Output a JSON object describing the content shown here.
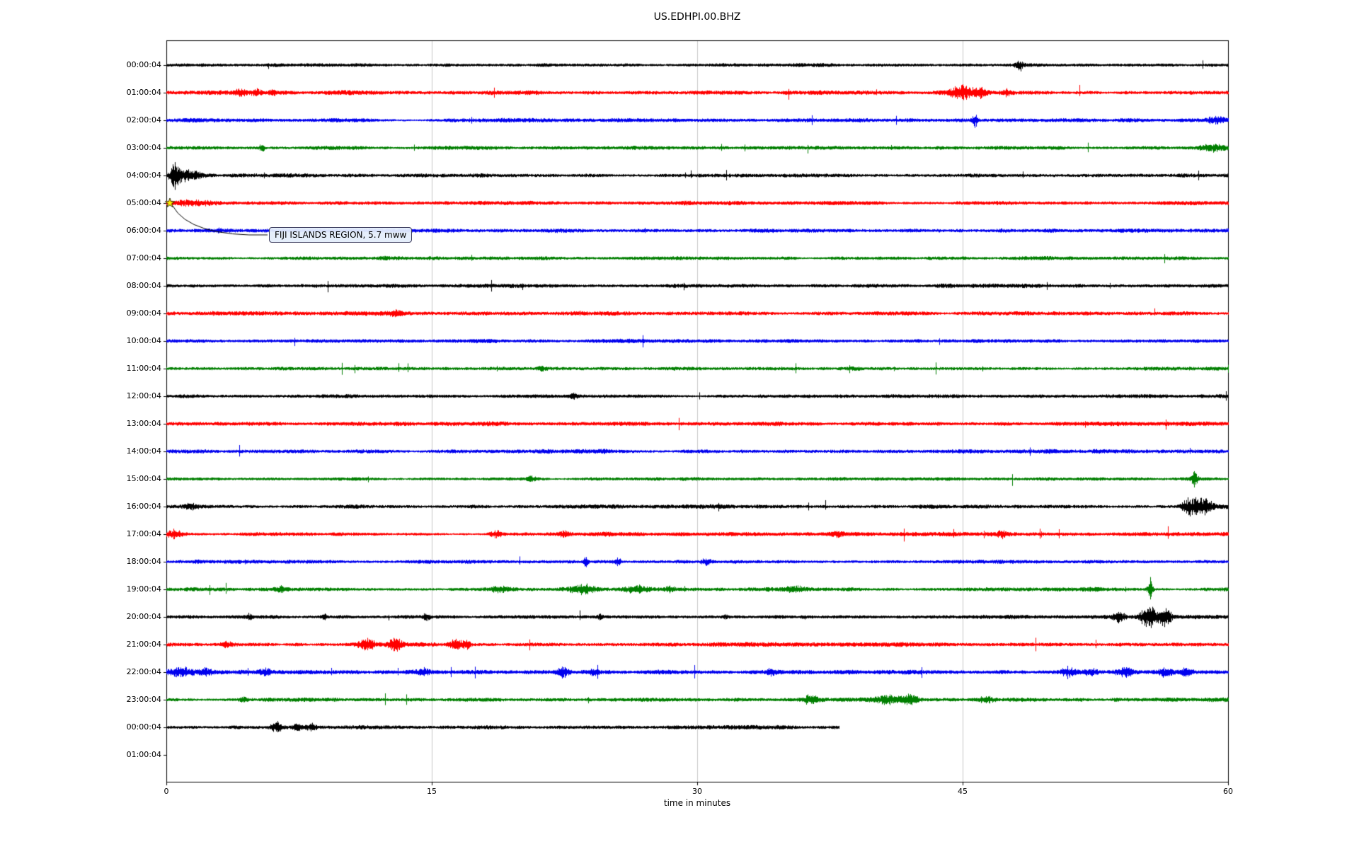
{
  "chart_data": {
    "type": "line",
    "subtype": "seismic helicorder dayplot, one trace per hour",
    "title": "US.EDHPI.00.BHZ",
    "xlabel": "time in minutes",
    "xlim": [
      0,
      60
    ],
    "xticks": [
      0,
      15,
      30,
      45,
      60
    ],
    "grid": "vertical gridlines at 15, 30 and 45 minutes",
    "trace_color_cycle": [
      "black",
      "red",
      "blue",
      "green"
    ],
    "palette": {
      "black": "#000000",
      "red": "#ff0000",
      "blue": "#0000ee",
      "green": "#007f00",
      "grid": "#bbbbbb",
      "frame": "#000000",
      "star": "#ffee00"
    },
    "annotation": {
      "text": "FIJI ISLANDS REGION, 5.7 mww",
      "row": "05:00:04",
      "minute": 0.2,
      "marker": "star",
      "marker_color": "#ffee00"
    },
    "rows": [
      {
        "label": "00:00:04",
        "color": "black",
        "end": 60,
        "base": 1.8,
        "bursts": [
          [
            48.2,
            5,
            0.15
          ]
        ]
      },
      {
        "label": "01:00:04",
        "color": "red",
        "end": 60,
        "base": 2.1,
        "bursts": [
          [
            4.2,
            3,
            0.25
          ],
          [
            5.1,
            4,
            0.2
          ],
          [
            6.0,
            3.5,
            0.15
          ],
          [
            44.9,
            7,
            0.45
          ],
          [
            45.9,
            5,
            0.3
          ],
          [
            47.5,
            3,
            0.2
          ]
        ]
      },
      {
        "label": "02:00:04",
        "color": "blue",
        "end": 60,
        "base": 2.0,
        "bursts": [
          [
            45.7,
            7,
            0.1
          ],
          [
            59.4,
            3.5,
            0.5
          ]
        ]
      },
      {
        "label": "03:00:04",
        "color": "green",
        "end": 60,
        "base": 1.8,
        "bursts": [
          [
            5.4,
            4.5,
            0.1
          ],
          [
            59.2,
            3.5,
            0.45
          ]
        ]
      },
      {
        "label": "04:00:04",
        "color": "black",
        "end": 60,
        "base": 1.8,
        "bursts": [
          [
            0.45,
            13,
            0.18
          ],
          [
            0.95,
            6,
            0.25
          ],
          [
            1.6,
            3,
            0.4
          ]
        ]
      },
      {
        "label": "05:00:04",
        "color": "red",
        "end": 60,
        "base": 2.1,
        "bursts": [
          [
            1.5,
            2.5,
            1.0
          ]
        ]
      },
      {
        "label": "06:00:04",
        "color": "blue",
        "end": 60,
        "base": 2.0,
        "bursts": [
          [
            3.0,
            2.0,
            0.6
          ]
        ]
      },
      {
        "label": "07:00:04",
        "color": "green",
        "end": 60,
        "base": 1.8,
        "bursts": []
      },
      {
        "label": "08:00:04",
        "color": "black",
        "end": 60,
        "base": 2.1,
        "bursts": []
      },
      {
        "label": "09:00:04",
        "color": "red",
        "end": 60,
        "base": 2.1,
        "bursts": [
          [
            13.0,
            2.5,
            0.25
          ]
        ]
      },
      {
        "label": "10:00:04",
        "color": "blue",
        "end": 60,
        "base": 2.0,
        "bursts": []
      },
      {
        "label": "11:00:04",
        "color": "green",
        "end": 60,
        "base": 1.8,
        "bursts": [
          [
            21.2,
            2.5,
            0.2
          ]
        ]
      },
      {
        "label": "12:00:04",
        "color": "black",
        "end": 60,
        "base": 1.9,
        "bursts": [
          [
            23.0,
            2.5,
            0.15
          ]
        ]
      },
      {
        "label": "13:00:04",
        "color": "red",
        "end": 60,
        "base": 2.1,
        "bursts": []
      },
      {
        "label": "14:00:04",
        "color": "blue",
        "end": 60,
        "base": 2.0,
        "bursts": []
      },
      {
        "label": "15:00:04",
        "color": "green",
        "end": 60,
        "base": 1.8,
        "bursts": [
          [
            20.6,
            2.5,
            0.2
          ],
          [
            58.1,
            7,
            0.12
          ]
        ]
      },
      {
        "label": "16:00:04",
        "color": "black",
        "end": 60,
        "base": 2.0,
        "bursts": [
          [
            1.4,
            3,
            0.3
          ],
          [
            57.9,
            9,
            0.35
          ],
          [
            58.7,
            8,
            0.3
          ]
        ]
      },
      {
        "label": "17:00:04",
        "color": "red",
        "end": 60,
        "base": 2.2,
        "bursts": [
          [
            0.4,
            4,
            0.35
          ],
          [
            18.6,
            3.5,
            0.25
          ],
          [
            22.5,
            3,
            0.2
          ],
          [
            37.9,
            2.5,
            0.2
          ],
          [
            47.2,
            3.5,
            0.15
          ]
        ]
      },
      {
        "label": "18:00:04",
        "color": "blue",
        "end": 60,
        "base": 2.0,
        "bursts": [
          [
            23.7,
            5,
            0.08
          ],
          [
            25.5,
            4,
            0.12
          ],
          [
            30.5,
            2.5,
            0.2
          ]
        ]
      },
      {
        "label": "19:00:04",
        "color": "green",
        "end": 60,
        "base": 1.9,
        "bursts": [
          [
            6.5,
            2.5,
            0.2
          ],
          [
            18.8,
            3,
            0.3
          ],
          [
            23.5,
            4.5,
            0.5
          ],
          [
            26.6,
            3.5,
            0.5
          ],
          [
            28.4,
            2.5,
            0.3
          ],
          [
            35.6,
            3,
            0.35
          ],
          [
            55.6,
            9,
            0.1
          ]
        ]
      },
      {
        "label": "20:00:04",
        "color": "black",
        "end": 60,
        "base": 1.9,
        "bursts": [
          [
            4.7,
            3,
            0.1
          ],
          [
            8.9,
            3,
            0.1
          ],
          [
            14.7,
            3.5,
            0.12
          ],
          [
            24.5,
            2.5,
            0.1
          ],
          [
            31.6,
            2.5,
            0.1
          ],
          [
            36.0,
            2.5,
            0.1
          ],
          [
            53.8,
            5,
            0.25
          ],
          [
            55.5,
            12,
            0.3
          ],
          [
            56.4,
            9,
            0.25
          ]
        ]
      },
      {
        "label": "21:00:04",
        "color": "red",
        "end": 60,
        "base": 2.1,
        "bursts": [
          [
            3.4,
            2.5,
            0.2
          ],
          [
            11.3,
            5,
            0.35
          ],
          [
            12.9,
            5.5,
            0.3
          ],
          [
            16.4,
            6,
            0.3
          ],
          [
            17.0,
            4,
            0.2
          ]
        ]
      },
      {
        "label": "22:00:04",
        "color": "blue",
        "end": 60,
        "base": 2.2,
        "bursts": [
          [
            0.8,
            4.5,
            0.5
          ],
          [
            2.2,
            3.5,
            0.3
          ],
          [
            5.6,
            3,
            0.2
          ],
          [
            14.6,
            2.5,
            0.2
          ],
          [
            22.4,
            4.5,
            0.25
          ],
          [
            24.1,
            3,
            0.2
          ],
          [
            34.2,
            3,
            0.2
          ],
          [
            50.9,
            4,
            0.3
          ],
          [
            52.3,
            3,
            0.25
          ],
          [
            54.2,
            4.5,
            0.35
          ],
          [
            56.4,
            4,
            0.3
          ],
          [
            57.6,
            3,
            0.25
          ]
        ]
      },
      {
        "label": "23:00:04",
        "color": "green",
        "end": 60,
        "base": 1.9,
        "bursts": [
          [
            4.4,
            2.5,
            0.2
          ],
          [
            36.4,
            4.5,
            0.3
          ],
          [
            40.7,
            4,
            0.5
          ],
          [
            42.0,
            4.5,
            0.4
          ],
          [
            46.3,
            3.5,
            0.3
          ]
        ]
      },
      {
        "label": "00:00:04",
        "color": "black",
        "end": 38,
        "base": 1.9,
        "bursts": [
          [
            6.2,
            4.5,
            0.25
          ],
          [
            7.4,
            3.5,
            0.2
          ],
          [
            8.2,
            2.5,
            0.2
          ]
        ]
      },
      {
        "label": "01:00:04",
        "color": "red",
        "end": 0,
        "base": 0,
        "bursts": []
      }
    ]
  }
}
